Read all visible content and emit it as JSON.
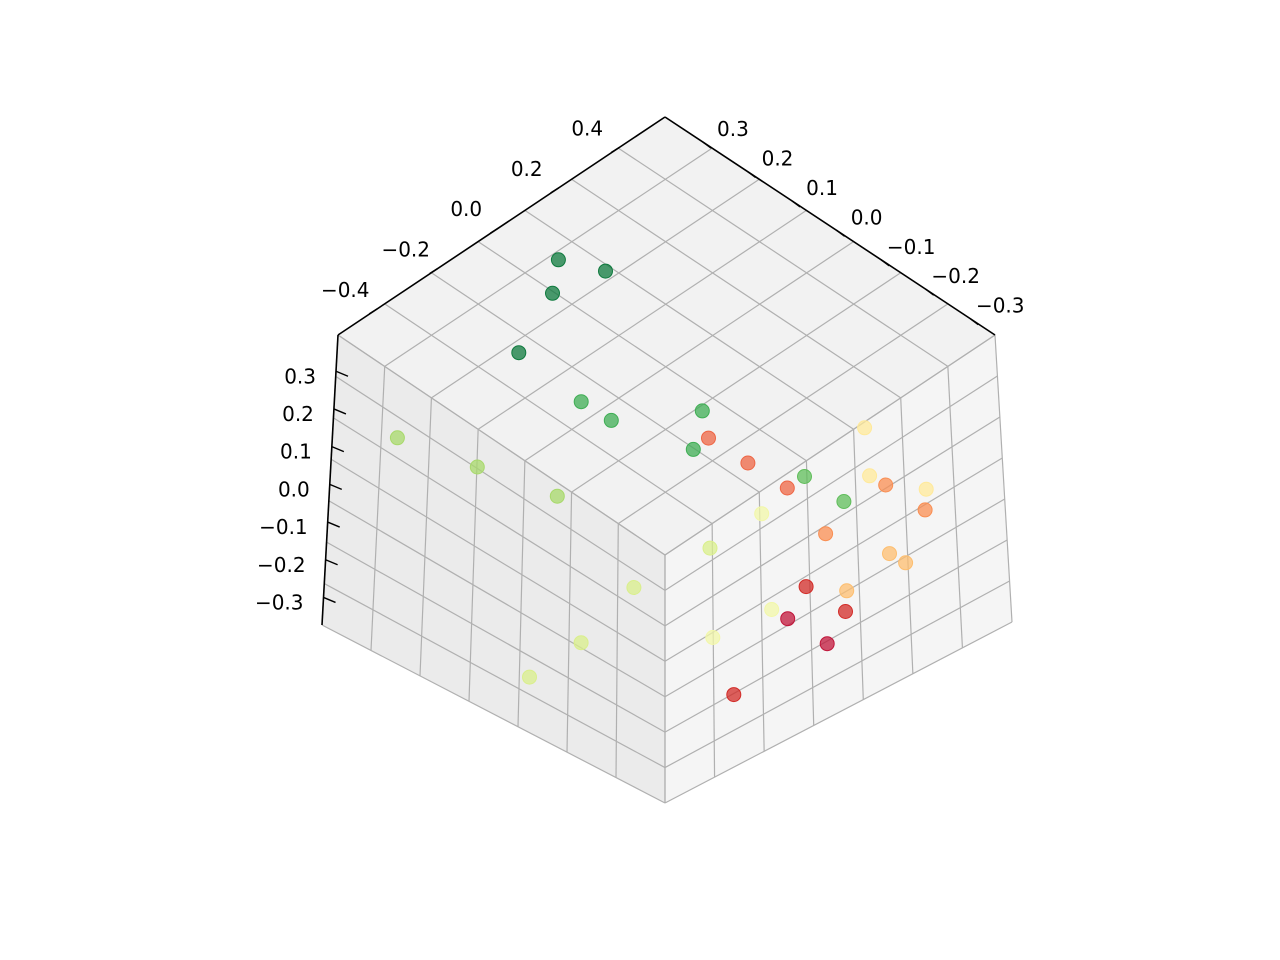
{
  "chart_data": {
    "type": "scatter",
    "projection": "3d",
    "title": "",
    "grid": true,
    "legend": "none",
    "axes": {
      "x": {
        "ticks": [
          "−0.4",
          "−0.2",
          "0.0",
          "0.2",
          "0.4"
        ],
        "range": [
          -0.5,
          0.45
        ]
      },
      "y": {
        "ticks": [
          "−0.3",
          "−0.2",
          "−0.1",
          "0.0",
          "0.1",
          "0.2",
          "0.3"
        ],
        "range": [
          -0.35,
          0.35
        ]
      },
      "z": {
        "ticks": [
          "−0.3",
          "−0.2",
          "−0.1",
          "0.0",
          "0.1",
          "0.2",
          "0.3"
        ],
        "range": [
          -0.35,
          0.35
        ]
      }
    },
    "colormap": "RdYlGn",
    "series": [
      {
        "label_value": 0.95,
        "color": "#0f7a3e",
        "x": [
          0.05,
          0.15,
          -0.05,
          -0.2
        ],
        "y": [
          0.28,
          0.25,
          0.22,
          0.18
        ],
        "z": [
          0.28,
          0.22,
          0.3,
          0.27
        ]
      },
      {
        "label_value": 0.8,
        "color": "#3fae54",
        "x": [
          -0.1,
          0.05,
          0.1,
          -0.15
        ],
        "y": [
          0.05,
          -0.02,
          0.0,
          0.08
        ],
        "z": [
          0.15,
          0.05,
          0.1,
          0.2
        ]
      },
      {
        "label_value": 0.7,
        "color": "#5fbd5a",
        "x": [
          0.2,
          0.25
        ],
        "y": [
          -0.15,
          -0.2
        ],
        "z": [
          0.0,
          -0.05
        ]
      },
      {
        "label_value": 0.55,
        "color": "#a8d96b",
        "x": [
          -0.45,
          -0.35,
          -0.25
        ],
        "y": [
          0.25,
          0.15,
          0.05
        ],
        "z": [
          0.15,
          0.1,
          0.05
        ]
      },
      {
        "label_value": 0.5,
        "color": "#d9ef8b",
        "x": [
          -0.45,
          -0.3,
          -0.15,
          0.0
        ],
        "y": [
          -0.05,
          -0.05,
          -0.05,
          -0.1
        ],
        "z": [
          -0.2,
          -0.2,
          -0.15,
          -0.1
        ]
      },
      {
        "label_value": 0.45,
        "color": "#f2f7a8",
        "x": [
          -0.05,
          0.05,
          0.15
        ],
        "y": [
          -0.15,
          -0.2,
          -0.1
        ],
        "z": [
          -0.25,
          -0.2,
          -0.1
        ]
      },
      {
        "label_value": 0.4,
        "color": "#ffe99a",
        "x": [
          0.25,
          0.35,
          0.3
        ],
        "y": [
          -0.25,
          -0.3,
          -0.2
        ],
        "z": [
          0.05,
          0.0,
          0.1
        ]
      },
      {
        "label_value": 0.3,
        "color": "#fdbe6f",
        "x": [
          0.3,
          0.2,
          0.25
        ],
        "y": [
          -0.3,
          -0.25,
          -0.3
        ],
        "z": [
          -0.15,
          -0.2,
          -0.1
        ]
      },
      {
        "label_value": 0.2,
        "color": "#f98e52",
        "x": [
          0.35,
          0.3,
          0.2
        ],
        "y": [
          -0.3,
          -0.25,
          -0.2
        ],
        "z": [
          -0.05,
          0.0,
          -0.1
        ]
      },
      {
        "label_value": 0.15,
        "color": "#ee6544",
        "x": [
          0.1,
          0.15,
          0.05
        ],
        "y": [
          -0.1,
          -0.15,
          -0.05
        ],
        "z": [
          0.05,
          0.0,
          0.1
        ]
      },
      {
        "label_value": 0.05,
        "color": "#d22b27",
        "x": [
          0.15,
          0.2,
          -0.05
        ],
        "y": [
          -0.2,
          -0.25,
          -0.2
        ],
        "z": [
          -0.2,
          -0.25,
          -0.35
        ]
      },
      {
        "label_value": 0.0,
        "color": "#c0153a",
        "x": [
          0.15,
          0.1
        ],
        "y": [
          -0.25,
          -0.2
        ],
        "z": [
          -0.3,
          -0.25
        ]
      }
    ]
  }
}
